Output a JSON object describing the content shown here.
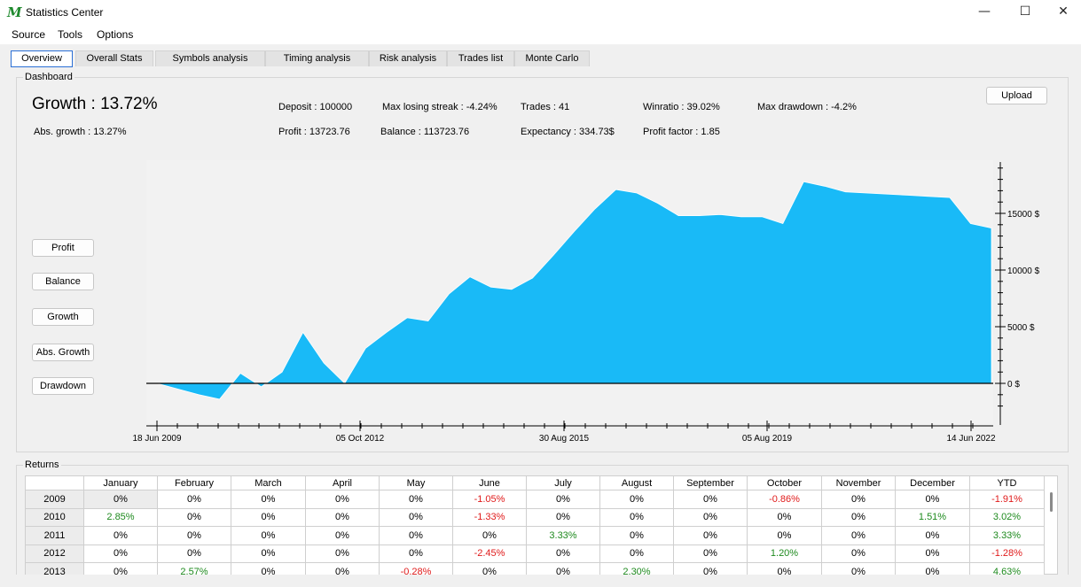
{
  "window": {
    "title": "Statistics Center",
    "minimize": "—",
    "maximize": "☐",
    "close": "✕"
  },
  "menu": [
    "Source",
    "Tools",
    "Options"
  ],
  "tabs": [
    "Overview",
    "Overall Stats",
    "Symbols analysis",
    "Timing analysis",
    "Risk analysis",
    "Trades list",
    "Monte Carlo"
  ],
  "dashboard": {
    "label": "Dashboard",
    "growth": "Growth :  13.72%",
    "abs_growth": "Abs. growth :  13.27%",
    "deposit": "Deposit :  100000",
    "profit": "Profit :  13723.76",
    "max_losing_streak": "Max losing streak :  -4.24%",
    "balance": "Balance :  113723.76",
    "trades": "Trades :  41",
    "expectancy": "Expectancy :  334.73$",
    "winratio": "Winratio :  39.02%",
    "profit_factor": "Profit factor :  1.85",
    "max_drawdown": "Max drawdown :  -4.2%",
    "upload_button": "Upload"
  },
  "chart_buttons": [
    "Profit",
    "Balance",
    "Growth",
    "Abs. Growth",
    "Drawdown"
  ],
  "chart_data": {
    "type": "area",
    "color": "#19baf7",
    "x_tick_labels": [
      "18 Jun 2009",
      "05 Oct 2012",
      "30 Aug 2015",
      "05 Aug 2019",
      "14 Jun 2022"
    ],
    "y_tick_labels": [
      "0 $",
      "5000 $",
      "10000 $",
      "15000 $"
    ],
    "ylim": [
      -2000,
      19500
    ],
    "y_ticks": [
      0,
      5000,
      10000,
      15000
    ],
    "values": [
      0,
      -500,
      -1000,
      -1400,
      900,
      -300,
      1000,
      4500,
      1800,
      0,
      3100,
      4500,
      5800,
      5500,
      7900,
      9400,
      8500,
      8300,
      9300,
      11300,
      13400,
      15400,
      17100,
      16800,
      15900,
      14800,
      14800,
      14900,
      14700,
      14700,
      14100,
      17800,
      17400,
      16900,
      16800,
      16700,
      16600,
      16500,
      16400,
      14100,
      13700
    ]
  },
  "returns": {
    "label": "Returns",
    "columns": [
      "",
      "January",
      "February",
      "March",
      "April",
      "May",
      "June",
      "July",
      "August",
      "September",
      "October",
      "November",
      "December",
      "YTD"
    ],
    "rows": [
      [
        "2009",
        "0%",
        "0%",
        "0%",
        "0%",
        "0%",
        "-1.05%",
        "0%",
        "0%",
        "0%",
        "-0.86%",
        "0%",
        "0%",
        "-1.91%"
      ],
      [
        "2010",
        "2.85%",
        "0%",
        "0%",
        "0%",
        "0%",
        "-1.33%",
        "0%",
        "0%",
        "0%",
        "0%",
        "0%",
        "1.51%",
        "3.02%"
      ],
      [
        "2011",
        "0%",
        "0%",
        "0%",
        "0%",
        "0%",
        "0%",
        "3.33%",
        "0%",
        "0%",
        "0%",
        "0%",
        "0%",
        "3.33%"
      ],
      [
        "2012",
        "0%",
        "0%",
        "0%",
        "0%",
        "0%",
        "-2.45%",
        "0%",
        "0%",
        "0%",
        "1.20%",
        "0%",
        "0%",
        "-1.28%"
      ],
      [
        "2013",
        "0%",
        "2.57%",
        "0%",
        "0%",
        "-0.28%",
        "0%",
        "0%",
        "2.30%",
        "0%",
        "0%",
        "0%",
        "0%",
        "4.63%"
      ]
    ]
  },
  "colors": {
    "positive": "#1e8a1e",
    "negative": "#e01b1b",
    "accent": "#2a6fd6"
  }
}
